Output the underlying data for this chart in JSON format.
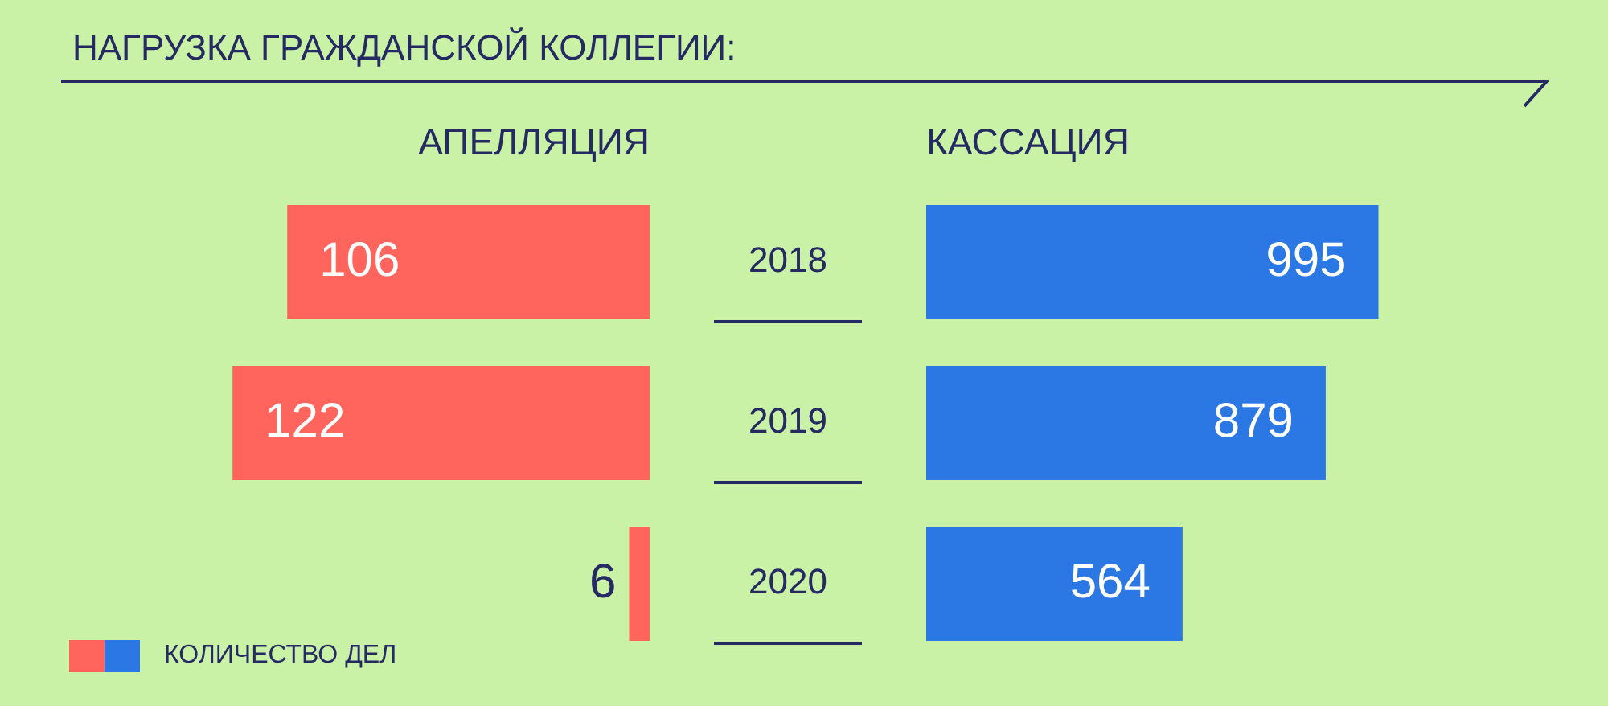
{
  "chart_data": [
    {
      "type": "bar",
      "orientation": "horizontal",
      "title": "НАГРУЗКА ГРАЖДАНСКОЙ КОЛЛЕГИИ:",
      "subtitle": "АПЕЛЛЯЦИЯ",
      "categories": [
        "2018",
        "2019",
        "2020"
      ],
      "series": [
        {
          "name": "КОЛИЧЕСТВО ДЕЛ",
          "color": "#ff655d",
          "values": [
            106,
            122,
            6
          ]
        }
      ],
      "xlim": [
        190,
        0
      ],
      "data_labels": true,
      "legend": "bottom left",
      "tick_labels": "y"
    },
    {
      "type": "bar",
      "orientation": "horizontal",
      "subtitle": "КАССАЦИЯ",
      "categories": [
        "2018",
        "2019",
        "2020"
      ],
      "series": [
        {
          "color": "#2b78e4",
          "values": [
            995,
            879,
            564
          ]
        }
      ],
      "xlim": [
        0,
        1500
      ],
      "data_labels": true,
      "tick_labels": false
    }
  ]
}
